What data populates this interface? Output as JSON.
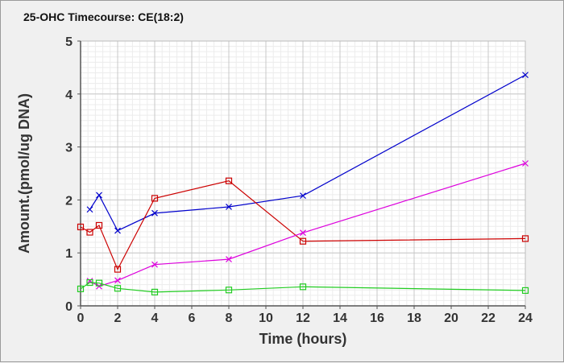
{
  "chart_data": {
    "type": "line",
    "title": "25-OHC Timecourse: CE(18:2)",
    "xlabel": "Time (hours)",
    "ylabel": "Amount.(pmol/ug DNA)",
    "xlim": [
      0,
      24
    ],
    "ylim": [
      0,
      5
    ],
    "x_ticks": [
      0,
      2,
      4,
      6,
      8,
      10,
      12,
      14,
      16,
      18,
      20,
      22,
      24
    ],
    "y_ticks": [
      0,
      1,
      2,
      3,
      4,
      5
    ],
    "grid": true,
    "series": [
      {
        "color": "#0000cc",
        "marker": "x",
        "x": [
          0.5,
          1,
          2,
          4,
          8,
          12,
          24
        ],
        "y": [
          1.82,
          2.09,
          1.42,
          1.75,
          1.87,
          2.08,
          4.36
        ]
      },
      {
        "color": "#cc0000",
        "marker": "square",
        "x": [
          0,
          0.5,
          1,
          2,
          4,
          8,
          12,
          24
        ],
        "y": [
          1.49,
          1.39,
          1.52,
          0.69,
          2.03,
          2.36,
          1.22,
          1.27
        ]
      },
      {
        "color": "#dd00dd",
        "marker": "x",
        "x": [
          0.5,
          1,
          2,
          4,
          8,
          12,
          24
        ],
        "y": [
          0.47,
          0.37,
          0.48,
          0.78,
          0.88,
          1.38,
          2.69
        ]
      },
      {
        "color": "#22cc22",
        "marker": "square",
        "x": [
          0,
          0.5,
          1,
          2,
          4,
          8,
          12,
          24
        ],
        "y": [
          0.32,
          0.44,
          0.43,
          0.33,
          0.26,
          0.3,
          0.36,
          0.29
        ]
      }
    ]
  }
}
